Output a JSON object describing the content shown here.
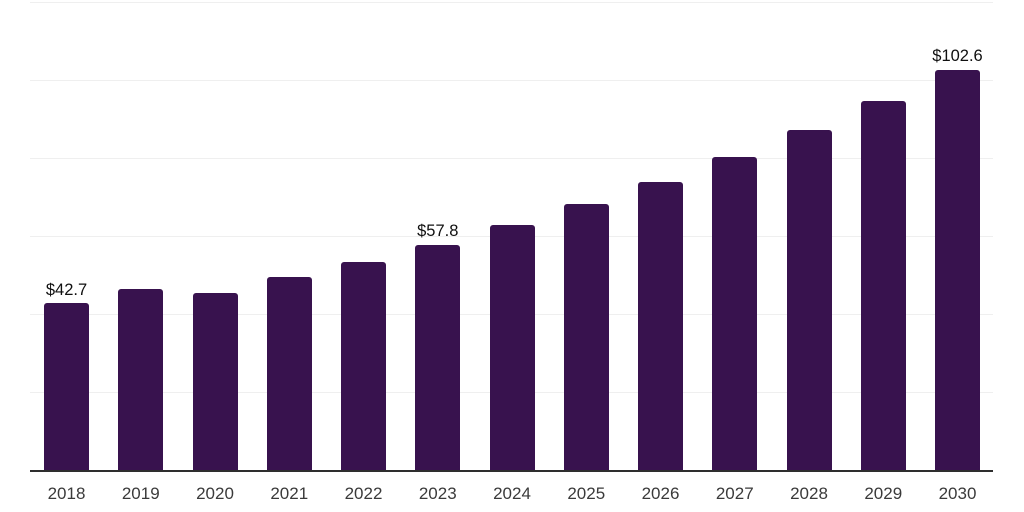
{
  "chart_data": {
    "type": "bar",
    "title": "",
    "xlabel": "",
    "ylabel": "",
    "categories": [
      "2018",
      "2019",
      "2020",
      "2021",
      "2022",
      "2023",
      "2024",
      "2025",
      "2026",
      "2027",
      "2028",
      "2029",
      "2030"
    ],
    "values": [
      42.7,
      46.4,
      45.4,
      49.4,
      53.4,
      57.8,
      62.7,
      68.1,
      73.9,
      80.2,
      87.1,
      94.5,
      102.6
    ],
    "data_labels": [
      "$42.7",
      null,
      null,
      null,
      null,
      "$57.8",
      null,
      null,
      null,
      null,
      null,
      null,
      "$102.6"
    ],
    "ylim": [
      0,
      120
    ],
    "grid_step": 20,
    "grid": "horizontal-only",
    "y_axis_tick_labels": "none",
    "legend_position": "none",
    "colors": {
      "bar": "#38124E",
      "gridline": "#EFEFEF",
      "axis": "#2E2E2E",
      "tick_label": "#3A3A3A",
      "data_label": "#101010",
      "background": "#FFFFFF"
    }
  }
}
